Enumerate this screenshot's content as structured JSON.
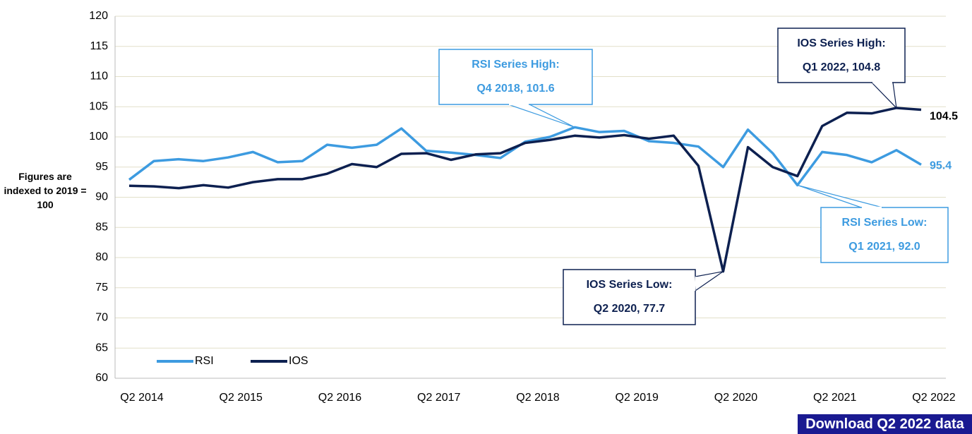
{
  "chart_data": {
    "type": "line",
    "y_axis_label": "Figures are indexed to 2019 = 100",
    "categories": [
      "Q2 2014",
      null,
      null,
      null,
      "Q2 2015",
      null,
      null,
      null,
      "Q2 2016",
      null,
      null,
      null,
      "Q2 2017",
      null,
      null,
      null,
      "Q2 2018",
      null,
      null,
      null,
      "Q2 2019",
      null,
      null,
      null,
      "Q2 2020",
      null,
      null,
      null,
      "Q2 2021",
      null,
      null,
      null,
      "Q2 2022"
    ],
    "series": [
      {
        "name": "RSI",
        "color": "#3d9be0",
        "values": [
          92.9,
          96.0,
          96.3,
          96.0,
          96.6,
          97.5,
          95.8,
          96.0,
          98.7,
          98.2,
          98.7,
          101.4,
          97.7,
          97.4,
          97.0,
          96.5,
          99.2,
          100.0,
          101.6,
          100.8,
          101.0,
          99.3,
          99.0,
          98.4,
          95.0,
          101.2,
          97.3,
          92.0,
          97.5,
          97.0,
          95.8,
          97.8,
          95.4
        ]
      },
      {
        "name": "IOS",
        "color": "#0d2050",
        "values": [
          91.9,
          91.8,
          91.5,
          92.0,
          91.6,
          92.5,
          93.0,
          93.0,
          93.9,
          95.5,
          95.0,
          97.2,
          97.3,
          96.2,
          97.1,
          97.3,
          99.0,
          99.5,
          100.2,
          99.9,
          100.3,
          99.7,
          100.2,
          95.2,
          77.7,
          98.3,
          95.0,
          93.5,
          101.8,
          104.0,
          103.9,
          104.8,
          104.5
        ]
      }
    ],
    "ylim": [
      60,
      120
    ],
    "yticks": [
      60,
      65,
      70,
      75,
      80,
      85,
      90,
      95,
      100,
      105,
      110,
      115,
      120
    ],
    "grid": true,
    "legend": "lower left",
    "annotations": [
      {
        "lines": [
          "RSI Series High:",
          "Q4 2018, 101.6"
        ]
      },
      {
        "lines": [
          "IOS Series High:",
          "Q1 2022, 104.8"
        ]
      },
      {
        "lines": [
          "RSI Series Low:",
          "Q1 2021, 92.0"
        ]
      },
      {
        "lines": [
          "IOS Series Low:",
          "Q2 2020, 77.7"
        ]
      }
    ]
  },
  "download_button": "Download Q2 2022 data"
}
